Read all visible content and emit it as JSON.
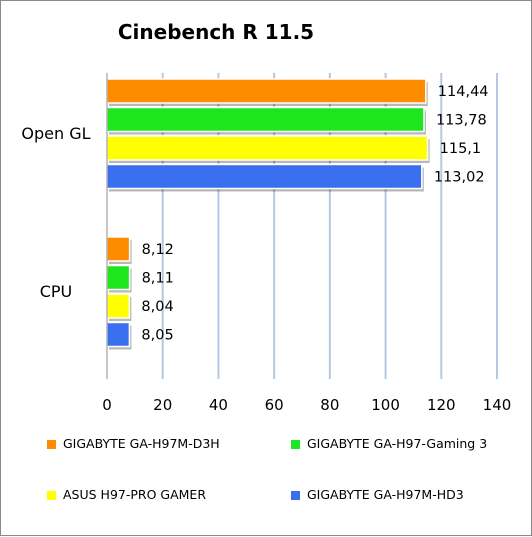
{
  "chart_data": {
    "type": "bar",
    "orientation": "horizontal",
    "title": "Cinebench R 11.5",
    "categories": [
      "Open GL",
      "CPU"
    ],
    "series": [
      {
        "name": "GIGABYTE GA-H97M-D3H",
        "color": "#FF8C00",
        "values": [
          114.44,
          8.12
        ],
        "labels": [
          "114,44",
          "8,12"
        ]
      },
      {
        "name": "GIGABYTE GA-H97-Gaming 3",
        "color": "#1EE61E",
        "values": [
          113.78,
          8.11
        ],
        "labels": [
          "113,78",
          "8,11"
        ]
      },
      {
        "name": "ASUS H97-PRO GAMER",
        "color": "#FFFF00",
        "values": [
          115.1,
          8.04
        ],
        "labels": [
          "115,1",
          "8,04"
        ]
      },
      {
        "name": "GIGABYTE GA-H97M-HD3",
        "color": "#3A6FF0",
        "values": [
          113.02,
          8.05
        ],
        "labels": [
          "113,02",
          "8,05"
        ]
      }
    ],
    "xlim": [
      0,
      140
    ],
    "xticks": [
      "0",
      "20",
      "40",
      "60",
      "80",
      "100",
      "120",
      "140"
    ],
    "xtick_values": [
      0,
      20,
      40,
      60,
      80,
      100,
      120,
      140
    ],
    "grid": true,
    "legend_position": "bottom"
  }
}
